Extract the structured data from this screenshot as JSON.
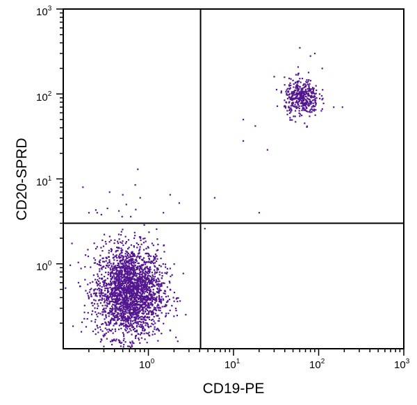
{
  "chart_data": {
    "type": "scatter",
    "xlabel": "CD19-PE",
    "ylabel": "CD20-SPRD",
    "xscale": "log",
    "yscale": "log",
    "xlim": [
      0.1,
      1000
    ],
    "ylim": [
      0.1,
      1000
    ],
    "grid": false,
    "point_color": "#531690",
    "x_ticks": [
      {
        "base": "10",
        "exp": "0",
        "value": 1
      },
      {
        "base": "10",
        "exp": "1",
        "value": 10
      },
      {
        "base": "10",
        "exp": "2",
        "value": 100
      },
      {
        "base": "10",
        "exp": "3",
        "value": 1000
      }
    ],
    "y_ticks": [
      {
        "base": "10",
        "exp": "0",
        "value": 1
      },
      {
        "base": "10",
        "exp": "1",
        "value": 10
      },
      {
        "base": "10",
        "exp": "2",
        "value": 100
      },
      {
        "base": "10",
        "exp": "3",
        "value": 1000
      }
    ],
    "quadrant_gates": {
      "x": 4.1,
      "y": 3.0
    },
    "populations": [
      {
        "center_x": 0.6,
        "center_y": 0.47,
        "log_sd_x": 0.2,
        "log_sd_y": 0.27,
        "count": 2500
      },
      {
        "center_x": 63,
        "center_y": 90,
        "log_sd_x": 0.1,
        "log_sd_y": 0.11,
        "count": 420
      }
    ],
    "sparse_points": [
      [
        0.17,
        8
      ],
      [
        0.25,
        4
      ],
      [
        0.2,
        4
      ],
      [
        0.28,
        3.8
      ],
      [
        0.35,
        7
      ],
      [
        0.33,
        4.5
      ],
      [
        0.5,
        6.5
      ],
      [
        0.55,
        5
      ],
      [
        0.45,
        4.2
      ],
      [
        0.75,
        13
      ],
      [
        0.7,
        8.5
      ],
      [
        0.62,
        3.6
      ],
      [
        0.8,
        6
      ],
      [
        1.8,
        6.5
      ],
      [
        2.3,
        5.2
      ],
      [
        1.5,
        4
      ],
      [
        6,
        6
      ],
      [
        4.6,
        2.6
      ],
      [
        20,
        4
      ],
      [
        25,
        22
      ],
      [
        13,
        28
      ],
      [
        13,
        50
      ],
      [
        18,
        42
      ],
      [
        30,
        160
      ],
      [
        90,
        300
      ],
      [
        80,
        280
      ],
      [
        150,
        70
      ],
      [
        190,
        70
      ],
      [
        60,
        350
      ],
      [
        110,
        200
      ]
    ]
  }
}
